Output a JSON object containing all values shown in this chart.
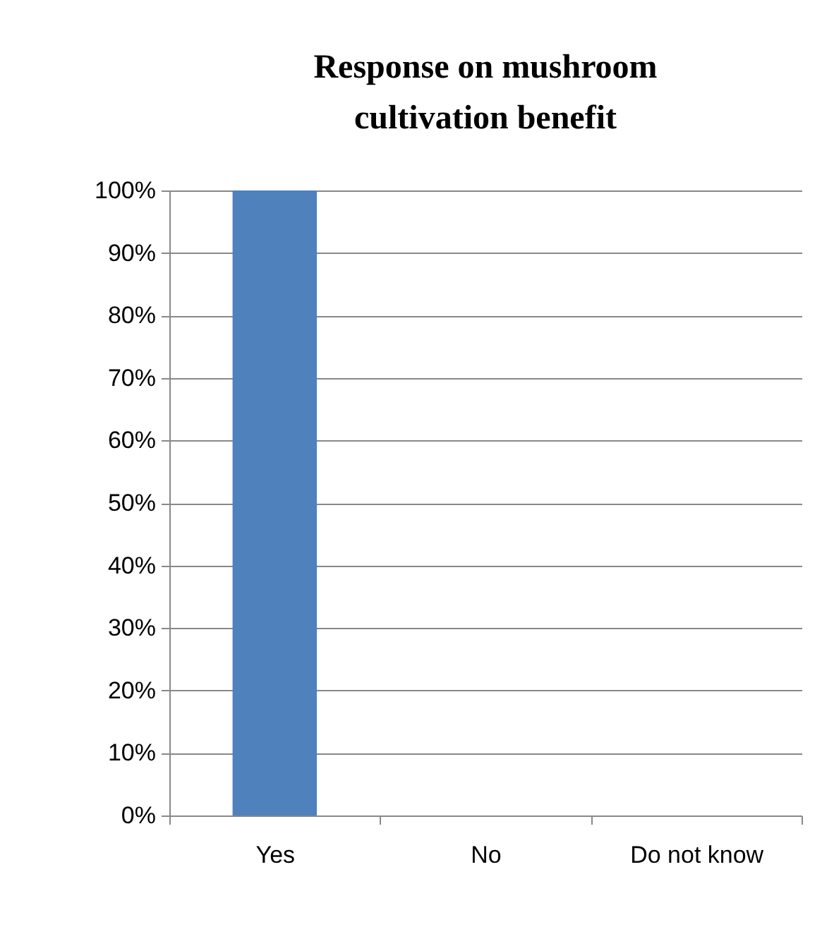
{
  "chart_data": {
    "type": "bar",
    "title": "Response on mushroom cultivation benefit",
    "categories": [
      "Yes",
      "No",
      "Do not know"
    ],
    "values": [
      100,
      0,
      0
    ],
    "color": "#4f81bd",
    "ylim": [
      0,
      100
    ],
    "yticks": [
      {
        "value": 0,
        "label": "0%"
      },
      {
        "value": 10,
        "label": "10%"
      },
      {
        "value": 20,
        "label": "20%"
      },
      {
        "value": 30,
        "label": "30%"
      },
      {
        "value": 40,
        "label": "40%"
      },
      {
        "value": 50,
        "label": "50%"
      },
      {
        "value": 60,
        "label": "60%"
      },
      {
        "value": 70,
        "label": "70%"
      },
      {
        "value": 80,
        "label": "80%"
      },
      {
        "value": 90,
        "label": "90%"
      },
      {
        "value": 100,
        "label": "100%"
      }
    ],
    "grid": "y"
  }
}
